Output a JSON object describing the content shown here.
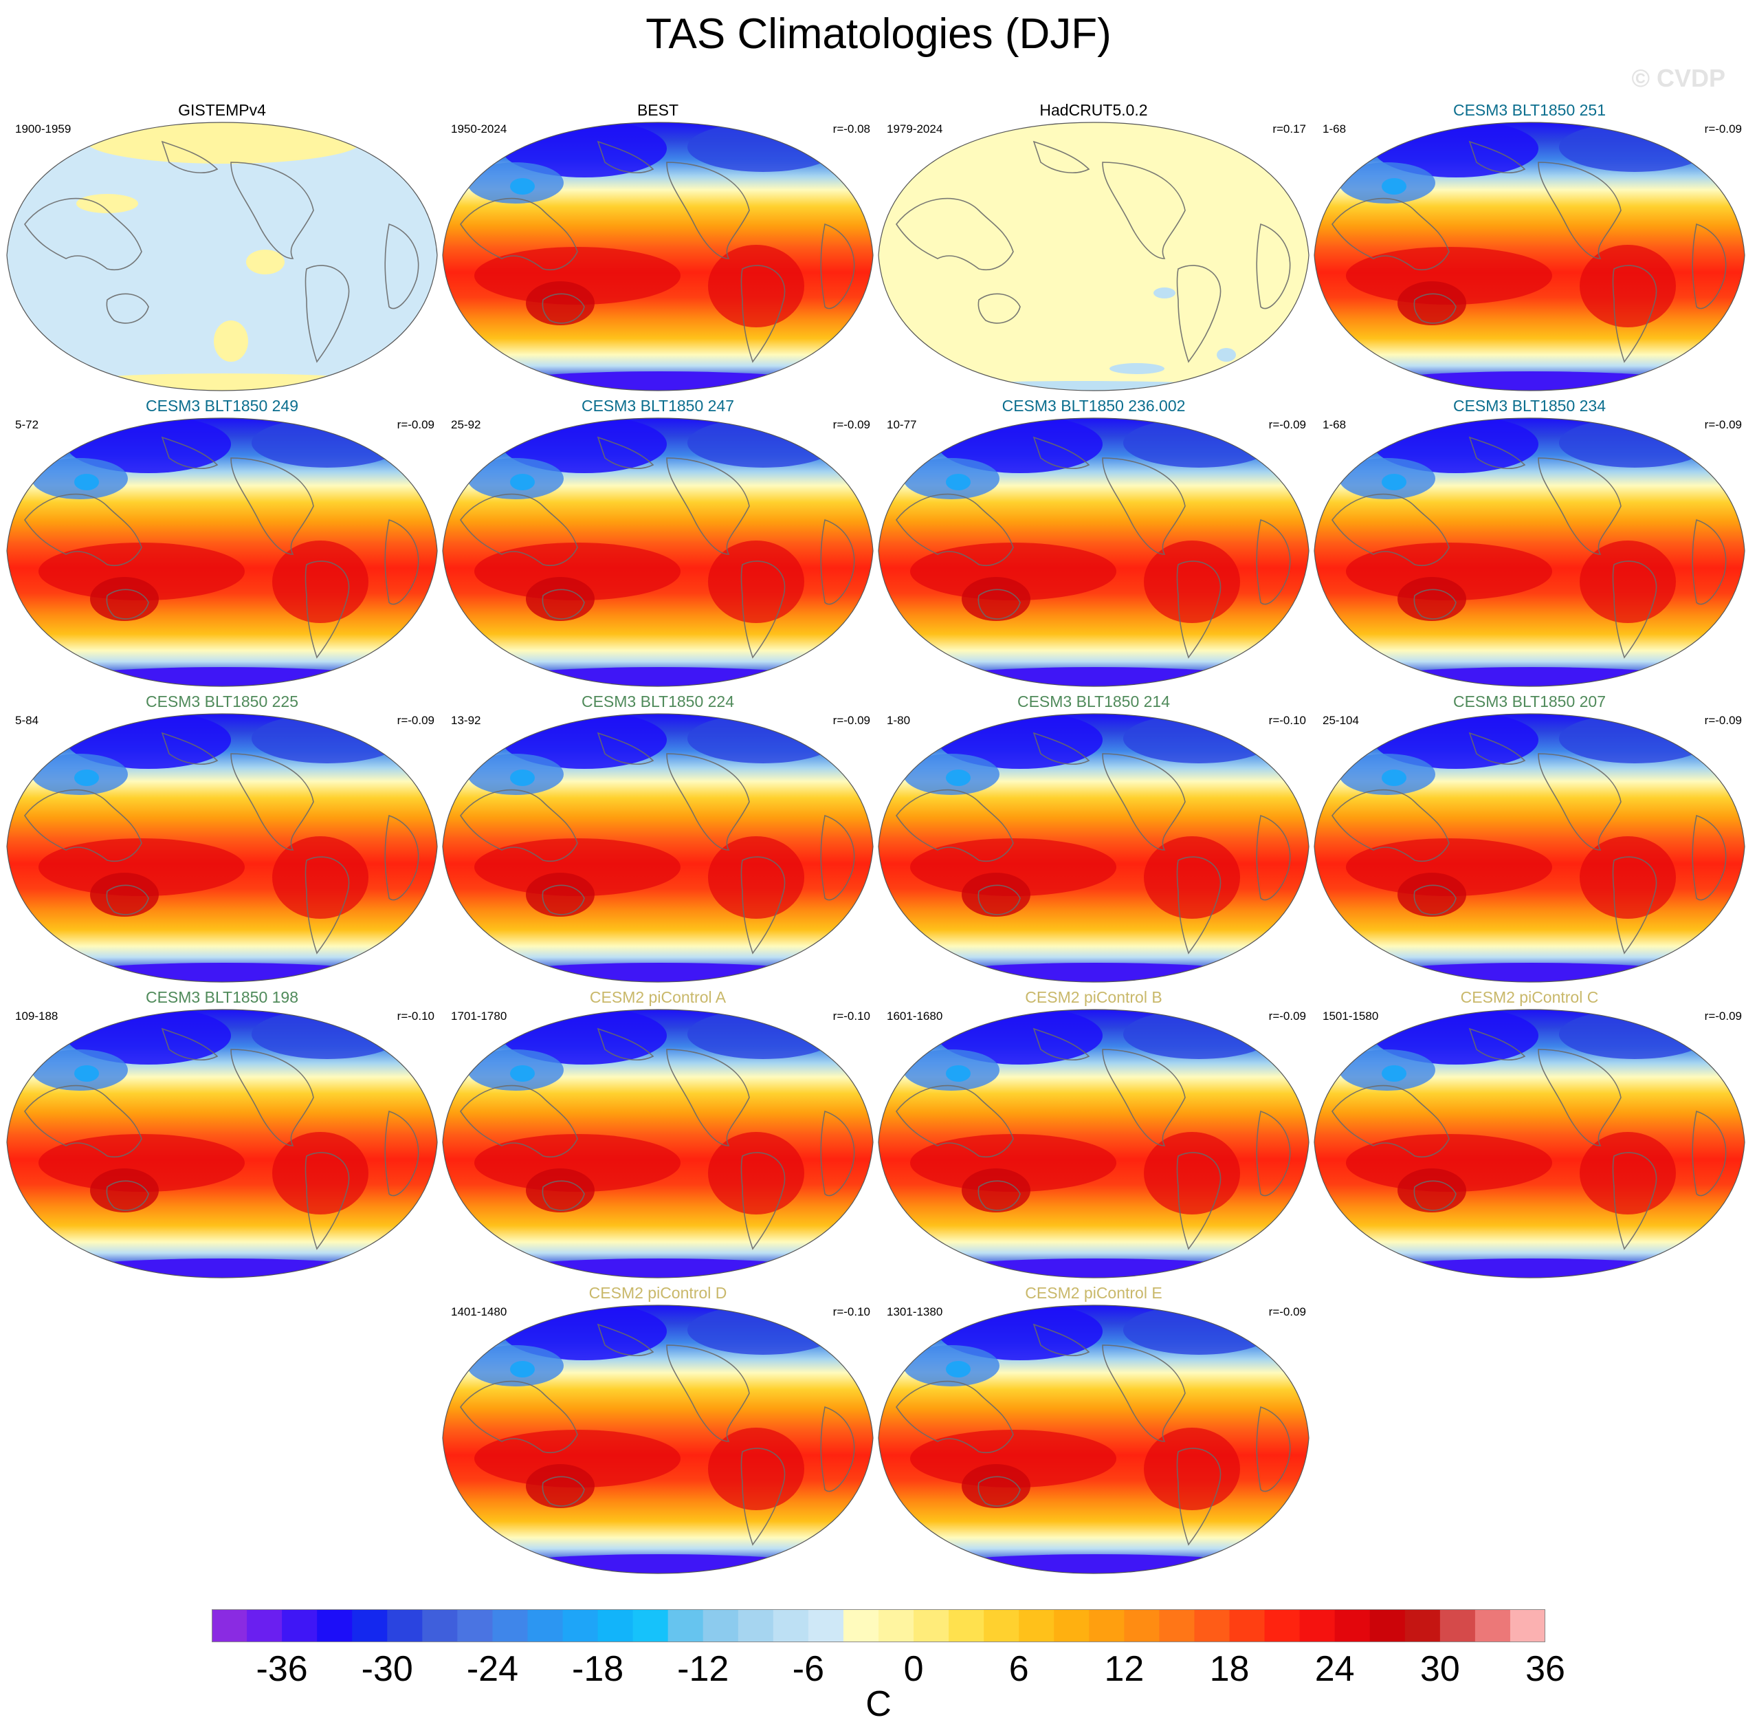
{
  "title": "TAS Climatologies (DJF)",
  "watermark": "© CVDP",
  "chart_data": {
    "type": "heatmap",
    "variable": "TAS",
    "season": "DJF",
    "projection": "robinson-global-map",
    "units": "C",
    "colorbar": {
      "levels": [
        -40,
        -38,
        -36,
        -34,
        -32,
        -30,
        -28,
        -26,
        -24,
        -22,
        -20,
        -18,
        -16,
        -14,
        -12,
        -10,
        -8,
        -6,
        -4,
        -2,
        0,
        2,
        4,
        6,
        8,
        10,
        12,
        14,
        16,
        18,
        20,
        22,
        24,
        26,
        28,
        30,
        32,
        34,
        36,
        38,
        40
      ],
      "tick_values": [
        -36,
        -30,
        -24,
        -18,
        -12,
        -6,
        0,
        6,
        12,
        18,
        24,
        30,
        36
      ],
      "tick_labels": [
        "-36",
        "-30",
        "-24",
        "-18",
        "-12",
        "-6",
        "0",
        "6",
        "12",
        "18",
        "24",
        "30",
        "36"
      ],
      "colors": [
        "#8a2be2",
        "#6a1ff0",
        "#3f16f6",
        "#1c0ef8",
        "#1428ef",
        "#2a44e0",
        "#3f5fdc",
        "#4a74e2",
        "#3f86ea",
        "#2c96f2",
        "#1ea5f8",
        "#12b4fa",
        "#16c2fb",
        "#66c4ef",
        "#8ccbee",
        "#a6d5f0",
        "#bde0f4",
        "#cfe8f7",
        "#fffbbd",
        "#fff5a0",
        "#ffec7a",
        "#ffe14e",
        "#ffd12f",
        "#ffc11a",
        "#ffb010",
        "#ff9f0f",
        "#ff8c12",
        "#ff7617",
        "#ff5c17",
        "#ff3f12",
        "#ff230f",
        "#f5120f",
        "#e3060c",
        "#cc0409",
        "#c51512",
        "#d54a4a",
        "#ec7878",
        "#fbb1b1"
      ]
    },
    "panels": [
      {
        "name": "GISTEMPv4",
        "period": "1900-1959",
        "r": "",
        "title_color": "#000000",
        "field": "anomaly-like"
      },
      {
        "name": "BEST",
        "period": "1950-2024",
        "r": "r=-0.08",
        "title_color": "#000000",
        "field": "climatology"
      },
      {
        "name": "HadCRUT5.0.2",
        "period": "1979-2024",
        "r": "r=0.17",
        "title_color": "#000000",
        "field": "anomaly-like"
      },
      {
        "name": "CESM3 BLT1850 251",
        "period": "1-68",
        "r": "r=-0.09",
        "title_color": "#0b6e8e",
        "field": "climatology"
      },
      {
        "name": "CESM3 BLT1850 249",
        "period": "5-72",
        "r": "r=-0.09",
        "title_color": "#0b6e8e",
        "field": "climatology"
      },
      {
        "name": "CESM3 BLT1850 247",
        "period": "25-92",
        "r": "r=-0.09",
        "title_color": "#0b6e8e",
        "field": "climatology"
      },
      {
        "name": "CESM3 BLT1850 236.002",
        "period": "10-77",
        "r": "r=-0.09",
        "title_color": "#0b6e8e",
        "field": "climatology"
      },
      {
        "name": "CESM3 BLT1850 234",
        "period": "1-68",
        "r": "r=-0.09",
        "title_color": "#0b6e8e",
        "field": "climatology"
      },
      {
        "name": "CESM3 BLT1850 225",
        "period": "5-84",
        "r": "r=-0.09",
        "title_color": "#4f8a5a",
        "field": "climatology"
      },
      {
        "name": "CESM3 BLT1850 224",
        "period": "13-92",
        "r": "r=-0.09",
        "title_color": "#4f8a5a",
        "field": "climatology"
      },
      {
        "name": "CESM3 BLT1850 214",
        "period": "1-80",
        "r": "r=-0.10",
        "title_color": "#4f8a5a",
        "field": "climatology"
      },
      {
        "name": "CESM3 BLT1850 207",
        "period": "25-104",
        "r": "r=-0.09",
        "title_color": "#4f8a5a",
        "field": "climatology"
      },
      {
        "name": "CESM3 BLT1850 198",
        "period": "109-188",
        "r": "r=-0.10",
        "title_color": "#4f8a5a",
        "field": "climatology"
      },
      {
        "name": "CESM2 piControl A",
        "period": "1701-1780",
        "r": "r=-0.10",
        "title_color": "#c9b86a",
        "field": "climatology"
      },
      {
        "name": "CESM2 piControl B",
        "period": "1601-1680",
        "r": "r=-0.09",
        "title_color": "#c9b86a",
        "field": "climatology"
      },
      {
        "name": "CESM2 piControl C",
        "period": "1501-1580",
        "r": "r=-0.09",
        "title_color": "#c9b86a",
        "field": "climatology"
      },
      {
        "name": "CESM2 piControl D",
        "period": "1401-1480",
        "r": "r=-0.10",
        "title_color": "#c9b86a",
        "field": "climatology"
      },
      {
        "name": "CESM2 piControl E",
        "period": "1301-1380",
        "r": "r=-0.09",
        "title_color": "#c9b86a",
        "field": "climatology"
      }
    ]
  }
}
